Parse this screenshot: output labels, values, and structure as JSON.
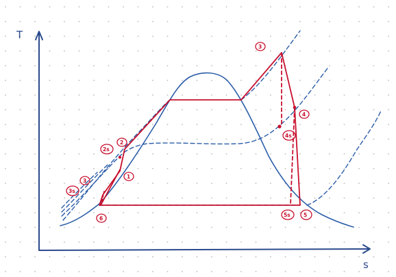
{
  "axes": {
    "y_label": "T",
    "x_label": "s"
  },
  "state_labels": {
    "p1": "1",
    "p2": "2",
    "p2s": "2s",
    "p3": "3",
    "p4": "4",
    "p4s": "4s",
    "p5": "5",
    "p5s": "5s",
    "p6": "6",
    "p3prime": "3",
    "p3s": "3s"
  },
  "colors": {
    "background": "#ffffff",
    "grid_dots": "#b9b9b9",
    "axes_blue": "#2b4a8c",
    "curve_blue": "#2b5da8",
    "cycle_red": "#c8102e"
  }
}
